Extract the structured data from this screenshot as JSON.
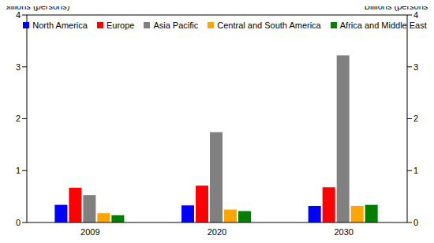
{
  "chart_data": {
    "type": "bar",
    "ylabel": "Billions (persons)",
    "y2label": "Billions (persons)",
    "categories": [
      "2009",
      "2020",
      "2030"
    ],
    "series": [
      {
        "name": "North America",
        "color": "#0000ff",
        "values": [
          0.34,
          0.33,
          0.32
        ]
      },
      {
        "name": "Europe",
        "color": "#ff0000",
        "values": [
          0.67,
          0.71,
          0.68
        ]
      },
      {
        "name": "Asia Pacific",
        "color": "#808080",
        "values": [
          0.53,
          1.74,
          3.22
        ]
      },
      {
        "name": "Central and South America",
        "color": "#ffa500",
        "values": [
          0.18,
          0.25,
          0.32
        ]
      },
      {
        "name": "Africa and Middle East",
        "color": "#008000",
        "values": [
          0.14,
          0.22,
          0.34
        ]
      }
    ],
    "ylim": [
      0,
      4
    ],
    "yticks": [
      0,
      1,
      2,
      3,
      4
    ],
    "y2lim": [
      0,
      4
    ],
    "y2ticks": [
      0,
      1,
      2,
      3,
      4
    ],
    "grid": false,
    "legend": "top"
  }
}
